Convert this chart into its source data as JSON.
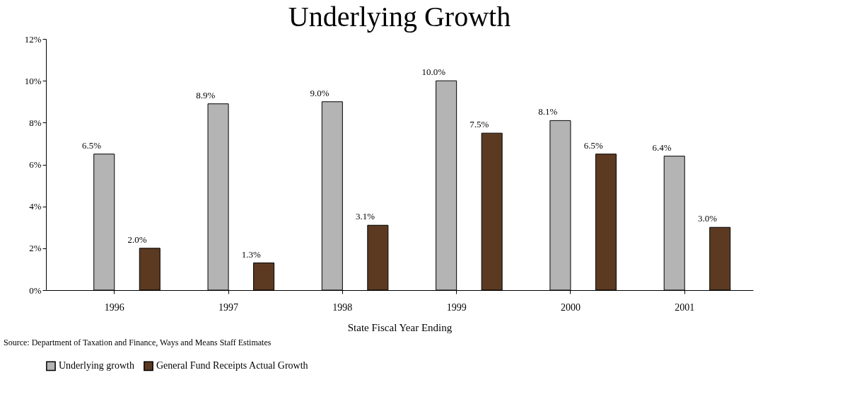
{
  "chart_data": {
    "type": "bar",
    "title": "Underlying Growth",
    "xlabel": "State Fiscal Year Ending",
    "categories": [
      "1996",
      "1997",
      "1998",
      "1999",
      "2000",
      "2001"
    ],
    "series": [
      {
        "name": "Underlying growth",
        "color": "#b4b4b4",
        "values": [
          6.5,
          8.9,
          9.0,
          10.0,
          8.1,
          6.4
        ],
        "value_labels": [
          "6.5%",
          "8.9%",
          "9.0%",
          "10.0%",
          "8.1%",
          "6.4%"
        ]
      },
      {
        "name": "General Fund Receipts Actual Growth",
        "color": "#5c3a22",
        "values": [
          2.0,
          1.3,
          3.1,
          7.5,
          6.5,
          3.0
        ],
        "value_labels": [
          "2.0%",
          "1.3%",
          "3.1%",
          "7.5%",
          "6.5%",
          "3.0%"
        ]
      }
    ],
    "ylim": [
      0,
      12
    ],
    "yticks": [
      {
        "value": 0,
        "label": "0%"
      },
      {
        "value": 2,
        "label": "2%"
      },
      {
        "value": 4,
        "label": "4%"
      },
      {
        "value": 6,
        "label": "6%"
      },
      {
        "value": 8,
        "label": "8%"
      },
      {
        "value": 10,
        "label": "10%"
      },
      {
        "value": 12,
        "label": "12%"
      }
    ],
    "grid": false,
    "legend": "bottom",
    "annotations": [
      "Source: Department of Taxation and Finance, Ways and Means Staff Estimates"
    ]
  }
}
